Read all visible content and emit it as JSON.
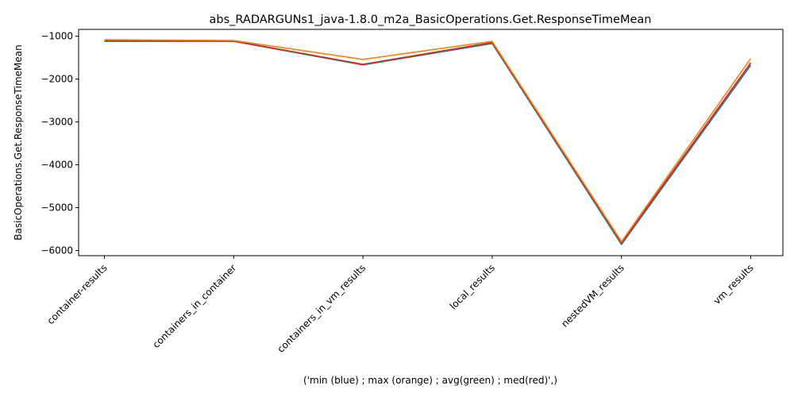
{
  "chart_data": {
    "type": "line",
    "title": "abs_RADARGUNs1_java-1.8.0_m2a_BasicOperations.Get.ResponseTimeMean",
    "xlabel": "('min (blue) ; max (orange) ; avg(green) ; med(red)',)",
    "ylabel": "BasicOperations.Get.ResponseTimeMean",
    "categories": [
      "container-results",
      "containers_in_container",
      "containers_in_vm_results",
      "local_results",
      "nestedVM_results",
      "vm_results"
    ],
    "ylim": [
      -6120,
      -840
    ],
    "yticks": [
      -1000,
      -2000,
      -3000,
      -4000,
      -5000,
      -6000
    ],
    "ytick_labels": [
      "−1000",
      "−2000",
      "−3000",
      "−4000",
      "−5000",
      "−6000"
    ],
    "grid": false,
    "legend": "none",
    "series": [
      {
        "color": "#1f77b4",
        "values": [
          -1120,
          -1120,
          -1670,
          -1170,
          -5860,
          -1680
        ]
      },
      {
        "color": "#2ca02c",
        "values": [
          -1110,
          -1115,
          -1660,
          -1150,
          -5830,
          -1630
        ]
      },
      {
        "color": "#d62728",
        "values": [
          -1105,
          -1112,
          -1655,
          -1145,
          -5820,
          -1620
        ]
      },
      {
        "color": "#ff7f0e",
        "values": [
          -1080,
          -1100,
          -1540,
          -1120,
          -5790,
          -1520
        ]
      }
    ]
  }
}
